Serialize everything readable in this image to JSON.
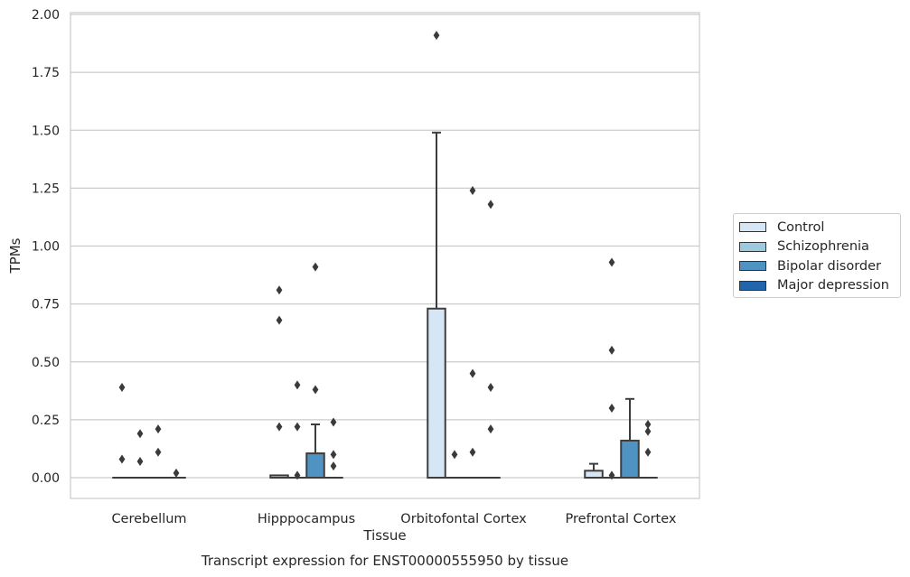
{
  "chart_data": {
    "type": "box",
    "title": "",
    "caption": "Transcript expression for ENST00000555950 by tissue",
    "xlabel": "Tissue",
    "ylabel": "TPMs",
    "ylim": [
      -0.09,
      2.01
    ],
    "yticks": [
      "0.00",
      "0.25",
      "0.50",
      "0.75",
      "1.00",
      "1.25",
      "1.50",
      "1.75",
      "2.00"
    ],
    "grid": true,
    "legend_position": "right",
    "categories": [
      "Cerebellum",
      "Hipppocampus",
      "Orbitofontal Cortex",
      "Prefrontal Cortex"
    ],
    "series": [
      {
        "name": "Control",
        "color": "#d6e6f4",
        "boxes": [
          {
            "q1": 0,
            "median": 0,
            "q3": 0,
            "whisker_low": 0,
            "whisker_high": 0,
            "outliers": [
              0.39,
              0.08
            ]
          },
          {
            "q1": 0,
            "median": 0,
            "q3": 0.01,
            "whisker_low": 0,
            "whisker_high": 0.01,
            "outliers": [
              0.81,
              0.68,
              0.22
            ]
          },
          {
            "q1": 0,
            "median": 0,
            "q3": 0.73,
            "whisker_low": 0,
            "whisker_high": 1.49,
            "outliers": [
              1.91
            ]
          },
          {
            "q1": 0,
            "median": 0,
            "q3": 0.03,
            "whisker_low": 0,
            "whisker_high": 0.06,
            "outliers": []
          }
        ]
      },
      {
        "name": "Schizophrenia",
        "color": "#9ecae1",
        "boxes": [
          {
            "q1": 0,
            "median": 0,
            "q3": 0,
            "whisker_low": 0,
            "whisker_high": 0,
            "outliers": [
              0.19,
              0.07
            ]
          },
          {
            "q1": 0,
            "median": 0,
            "q3": 0,
            "whisker_low": 0,
            "whisker_high": 0,
            "outliers": [
              0.4,
              0.22,
              0.01
            ]
          },
          {
            "q1": 0,
            "median": 0,
            "q3": 0,
            "whisker_low": 0,
            "whisker_high": 0,
            "outliers": [
              0.1
            ]
          },
          {
            "q1": 0,
            "median": 0,
            "q3": 0,
            "whisker_low": 0,
            "whisker_high": 0,
            "outliers": [
              0.93,
              0.55,
              0.3,
              0.01
            ]
          }
        ]
      },
      {
        "name": "Bipolar disorder",
        "color": "#4f93c3",
        "boxes": [
          {
            "q1": 0,
            "median": 0,
            "q3": 0,
            "whisker_low": 0,
            "whisker_high": 0,
            "outliers": [
              0.21,
              0.11
            ]
          },
          {
            "q1": 0,
            "median": 0,
            "q3": 0.105,
            "whisker_low": 0,
            "whisker_high": 0.23,
            "outliers": [
              0.91,
              0.38
            ]
          },
          {
            "q1": 0,
            "median": 0,
            "q3": 0,
            "whisker_low": 0,
            "whisker_high": 0,
            "outliers": [
              1.24,
              0.45,
              0.11
            ]
          },
          {
            "q1": 0,
            "median": 0,
            "q3": 0.16,
            "whisker_low": 0,
            "whisker_high": 0.34,
            "outliers": []
          }
        ]
      },
      {
        "name": "Major depression",
        "color": "#2166ac",
        "boxes": [
          {
            "q1": 0,
            "median": 0,
            "q3": 0,
            "whisker_low": 0,
            "whisker_high": 0,
            "outliers": [
              0.02
            ]
          },
          {
            "q1": 0,
            "median": 0,
            "q3": 0,
            "whisker_low": 0,
            "whisker_high": 0,
            "outliers": [
              0.24,
              0.1,
              0.05
            ]
          },
          {
            "q1": 0,
            "median": 0,
            "q3": 0,
            "whisker_low": 0,
            "whisker_high": 0,
            "outliers": [
              1.18,
              0.39,
              0.21
            ]
          },
          {
            "q1": 0,
            "median": 0,
            "q3": 0,
            "whisker_low": 0,
            "whisker_high": 0,
            "outliers": [
              0.23,
              0.2,
              0.11
            ]
          }
        ]
      }
    ]
  }
}
